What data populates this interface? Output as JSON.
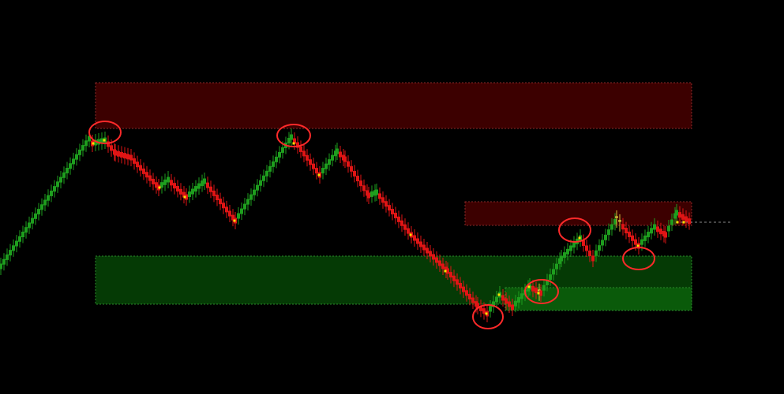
{
  "chart_data": {
    "type": "candlestick",
    "title": "",
    "xlabel": "",
    "ylabel": "",
    "grid": false,
    "ylim": [
      0,
      500
    ],
    "colors": {
      "background": "#000000",
      "up": "#1e9e1e",
      "down": "#e01515",
      "doji": "#d8c23a",
      "highlight": "#ff2a2a",
      "dot": "#ffe000",
      "supply_zone": "#3c0000",
      "supply_border": "#8a2a2a",
      "demand_zone": "#053a05",
      "demand_zone_strong": "#0a5a0a",
      "demand_border": "#2a8a2a",
      "last_price_line": "#8a8a8a"
    },
    "zones": [
      {
        "kind": "supply",
        "x0": 121,
        "x1": 876,
        "y0": 337,
        "y1": 395
      },
      {
        "kind": "supply",
        "x0": 589,
        "x1": 876,
        "y0": 214,
        "y1": 244
      },
      {
        "kind": "demand",
        "x0": 121,
        "x1": 876,
        "y0": 114,
        "y1": 175
      },
      {
        "kind": "demand",
        "x0": 640,
        "x1": 876,
        "y0": 106,
        "y1": 135
      }
    ],
    "pivots": [
      {
        "x": 0,
        "y": 162
      },
      {
        "x": 112,
        "y": 324
      },
      {
        "x": 116,
        "y": 318
      },
      {
        "x": 132,
        "y": 322
      },
      {
        "x": 145,
        "y": 306
      },
      {
        "x": 165,
        "y": 300
      },
      {
        "x": 200,
        "y": 262
      },
      {
        "x": 212,
        "y": 272
      },
      {
        "x": 235,
        "y": 250
      },
      {
        "x": 258,
        "y": 270
      },
      {
        "x": 297,
        "y": 220
      },
      {
        "x": 368,
        "y": 326
      },
      {
        "x": 376,
        "y": 316
      },
      {
        "x": 404,
        "y": 278
      },
      {
        "x": 426,
        "y": 308
      },
      {
        "x": 436,
        "y": 298
      },
      {
        "x": 466,
        "y": 252
      },
      {
        "x": 476,
        "y": 256
      },
      {
        "x": 520,
        "y": 202
      },
      {
        "x": 566,
        "y": 156
      },
      {
        "x": 604,
        "y": 112
      },
      {
        "x": 616,
        "y": 102
      },
      {
        "x": 632,
        "y": 126
      },
      {
        "x": 648,
        "y": 110
      },
      {
        "x": 670,
        "y": 136
      },
      {
        "x": 684,
        "y": 128
      },
      {
        "x": 710,
        "y": 172
      },
      {
        "x": 734,
        "y": 198
      },
      {
        "x": 750,
        "y": 172
      },
      {
        "x": 780,
        "y": 222
      },
      {
        "x": 808,
        "y": 188
      },
      {
        "x": 828,
        "y": 212
      },
      {
        "x": 842,
        "y": 202
      },
      {
        "x": 856,
        "y": 230
      },
      {
        "x": 874,
        "y": 218
      }
    ],
    "step": 4,
    "brick": 7,
    "dojis": [
      118,
      122,
      126,
      130,
      134,
      156,
      160,
      164,
      166,
      168,
      370,
      374,
      378,
      672,
      682,
      780,
      784,
      858,
      862,
      866,
      870,
      874
    ],
    "dots": [
      {
        "x": 118,
        "y": 318
      },
      {
        "x": 132,
        "y": 322
      },
      {
        "x": 202,
        "y": 262
      },
      {
        "x": 234,
        "y": 250
      },
      {
        "x": 297,
        "y": 220
      },
      {
        "x": 372,
        "y": 318
      },
      {
        "x": 404,
        "y": 278
      },
      {
        "x": 520,
        "y": 202
      },
      {
        "x": 564,
        "y": 156
      },
      {
        "x": 616,
        "y": 102
      },
      {
        "x": 632,
        "y": 126
      },
      {
        "x": 670,
        "y": 136
      },
      {
        "x": 682,
        "y": 128
      },
      {
        "x": 734,
        "y": 198
      },
      {
        "x": 808,
        "y": 188
      },
      {
        "x": 858,
        "y": 218
      },
      {
        "x": 866,
        "y": 218
      }
    ],
    "highlights": [
      {
        "cx": 133,
        "cy": 332,
        "rx": 20,
        "ry": 14
      },
      {
        "cx": 372,
        "cy": 328,
        "rx": 21,
        "ry": 14
      },
      {
        "cx": 618,
        "cy": 98,
        "rx": 19,
        "ry": 15
      },
      {
        "cx": 686,
        "cy": 130,
        "rx": 21,
        "ry": 15
      },
      {
        "cx": 728,
        "cy": 208,
        "rx": 20,
        "ry": 15
      },
      {
        "cx": 809,
        "cy": 172,
        "rx": 20,
        "ry": 14
      }
    ],
    "last_price": {
      "x0": 856,
      "x1": 928,
      "y": 218
    }
  }
}
